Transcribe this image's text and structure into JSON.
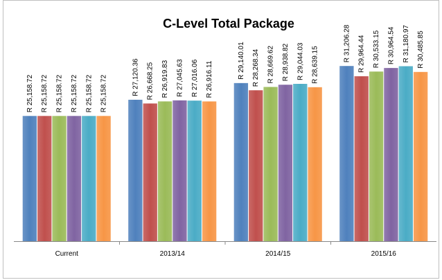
{
  "chart_data": {
    "type": "bar",
    "title": "C-Level Total Package",
    "categories": [
      "Current",
      "2013/14",
      "2014/15",
      "2015/16"
    ],
    "ylim": [
      10000,
      35000
    ],
    "series": [
      {
        "color": "#4f81bd",
        "values": [
          25158.72,
          27120.36,
          29140.01,
          31206.28
        ],
        "value_labels": [
          "R 25,158.72",
          "R 27,120.36",
          "R 29,140.01",
          "R 31,206.28"
        ]
      },
      {
        "color": "#c0504d",
        "values": [
          25158.72,
          26668.25,
          28268.34,
          29964.44
        ],
        "value_labels": [
          "R 25,158.72",
          "R 26,668.25",
          "R 28,268.34",
          "R 29,964.44"
        ]
      },
      {
        "color": "#9bbb59",
        "values": [
          25158.72,
          26919.83,
          28669.62,
          30533.15
        ],
        "value_labels": [
          "R 25,158.72",
          "R 26,919.83",
          "R 28,669.62",
          "R 30,533.15"
        ]
      },
      {
        "color": "#8064a2",
        "values": [
          25158.72,
          27045.63,
          28938.82,
          30964.54
        ],
        "value_labels": [
          "R 25,158.72",
          "R 27,045.63",
          "R 28,938.82",
          "R 30,964.54"
        ]
      },
      {
        "color": "#4bacc6",
        "values": [
          25158.72,
          27016.06,
          29044.03,
          31180.97
        ],
        "value_labels": [
          "R 25,158.72",
          "R 27,016.06",
          "R 29,044.03",
          "R 31,180.97"
        ]
      },
      {
        "color": "#f79646",
        "values": [
          25158.72,
          26916.11,
          28639.15,
          30485.85
        ],
        "value_labels": [
          "R 25,158.72",
          "R 26,916.11",
          "R 28,639.15",
          "R 30,485.85"
        ]
      }
    ]
  }
}
